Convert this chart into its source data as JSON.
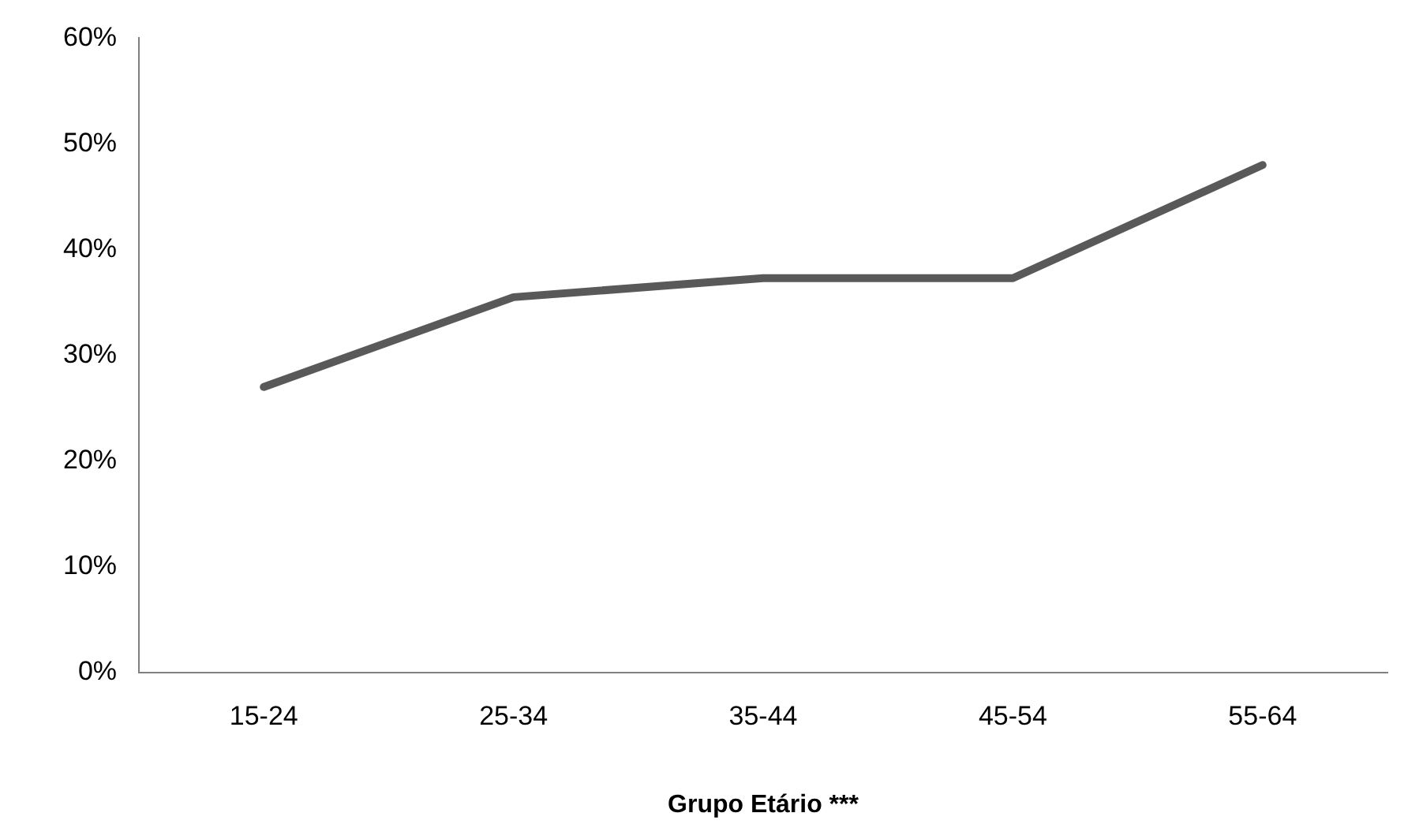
{
  "chart_data": {
    "type": "line",
    "xlabel": "Grupo Etário ***",
    "categories": [
      "15-24",
      "25-34",
      "35-44",
      "45-54",
      "55-64"
    ],
    "series": [
      {
        "color": "#595959",
        "values": [
          27,
          35.5,
          37.3,
          37.3,
          48
        ]
      }
    ],
    "ylim": [
      0,
      60
    ],
    "yticks": [
      {
        "value": 0,
        "label": "0%"
      },
      {
        "value": 10,
        "label": "10%"
      },
      {
        "value": 20,
        "label": "20%"
      },
      {
        "value": 30,
        "label": "30%"
      },
      {
        "value": 40,
        "label": "40%"
      },
      {
        "value": 50,
        "label": "50%"
      },
      {
        "value": 60,
        "label": "60%"
      }
    ],
    "grid": false,
    "legend": false,
    "marker": "none",
    "line_style": "solid"
  }
}
